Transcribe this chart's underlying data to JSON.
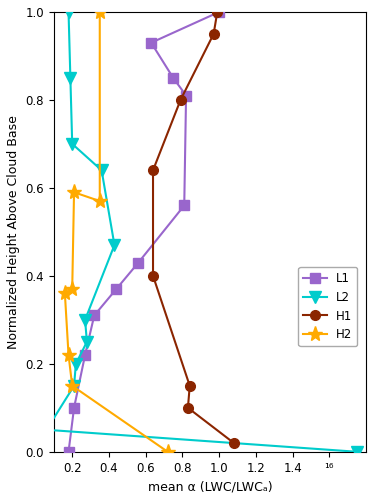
{
  "L1": {
    "x": [
      0.18,
      0.21,
      0.27,
      0.32,
      0.44,
      0.56,
      0.81,
      0.82,
      0.75,
      0.63,
      1.0
    ],
    "y": [
      0.0,
      0.1,
      0.22,
      0.31,
      0.37,
      0.43,
      0.56,
      0.81,
      0.85,
      0.93,
      1.0
    ],
    "color": "#9966cc",
    "marker": "s",
    "label": "L1"
  },
  "L2": {
    "x": [
      1.75,
      0.06,
      0.21,
      0.22,
      0.28,
      0.27,
      0.43,
      0.36,
      0.2,
      0.19,
      0.18
    ],
    "y": [
      0.0,
      0.05,
      0.15,
      0.2,
      0.25,
      0.3,
      0.47,
      0.64,
      0.7,
      0.85,
      1.0
    ],
    "color": "#00cccc",
    "marker": "v",
    "label": "L2"
  },
  "H1": {
    "x": [
      1.08,
      0.83,
      0.84,
      0.64,
      0.64,
      0.79,
      0.97,
      0.99
    ],
    "y": [
      0.02,
      0.1,
      0.15,
      0.4,
      0.64,
      0.8,
      0.95,
      1.0
    ],
    "color": "#8b2500",
    "marker": "o",
    "label": "H1"
  },
  "H2": {
    "x": [
      0.72,
      0.2,
      0.18,
      0.16,
      0.2,
      0.21,
      0.35,
      0.35
    ],
    "y": [
      0.0,
      0.15,
      0.22,
      0.36,
      0.37,
      0.59,
      0.57,
      1.0
    ],
    "color": "#ffaa00",
    "marker": "*",
    "label": "H2"
  },
  "xlabel": "mean α (LWC/LWCₐ)",
  "ylabel": "Normalized Height Above Cloud Base",
  "xlim": [
    0.1,
    1.8
  ],
  "ylim": [
    0.0,
    1.0
  ],
  "xticks": [
    0.2,
    0.4,
    0.6,
    0.8,
    1.0,
    1.2,
    1.4,
    1.6
  ],
  "yticks": [
    0.0,
    0.2,
    0.4,
    0.6,
    0.8,
    1.0
  ],
  "background_color": "#ffffff",
  "linewidth": 1.5,
  "markersize": 7
}
